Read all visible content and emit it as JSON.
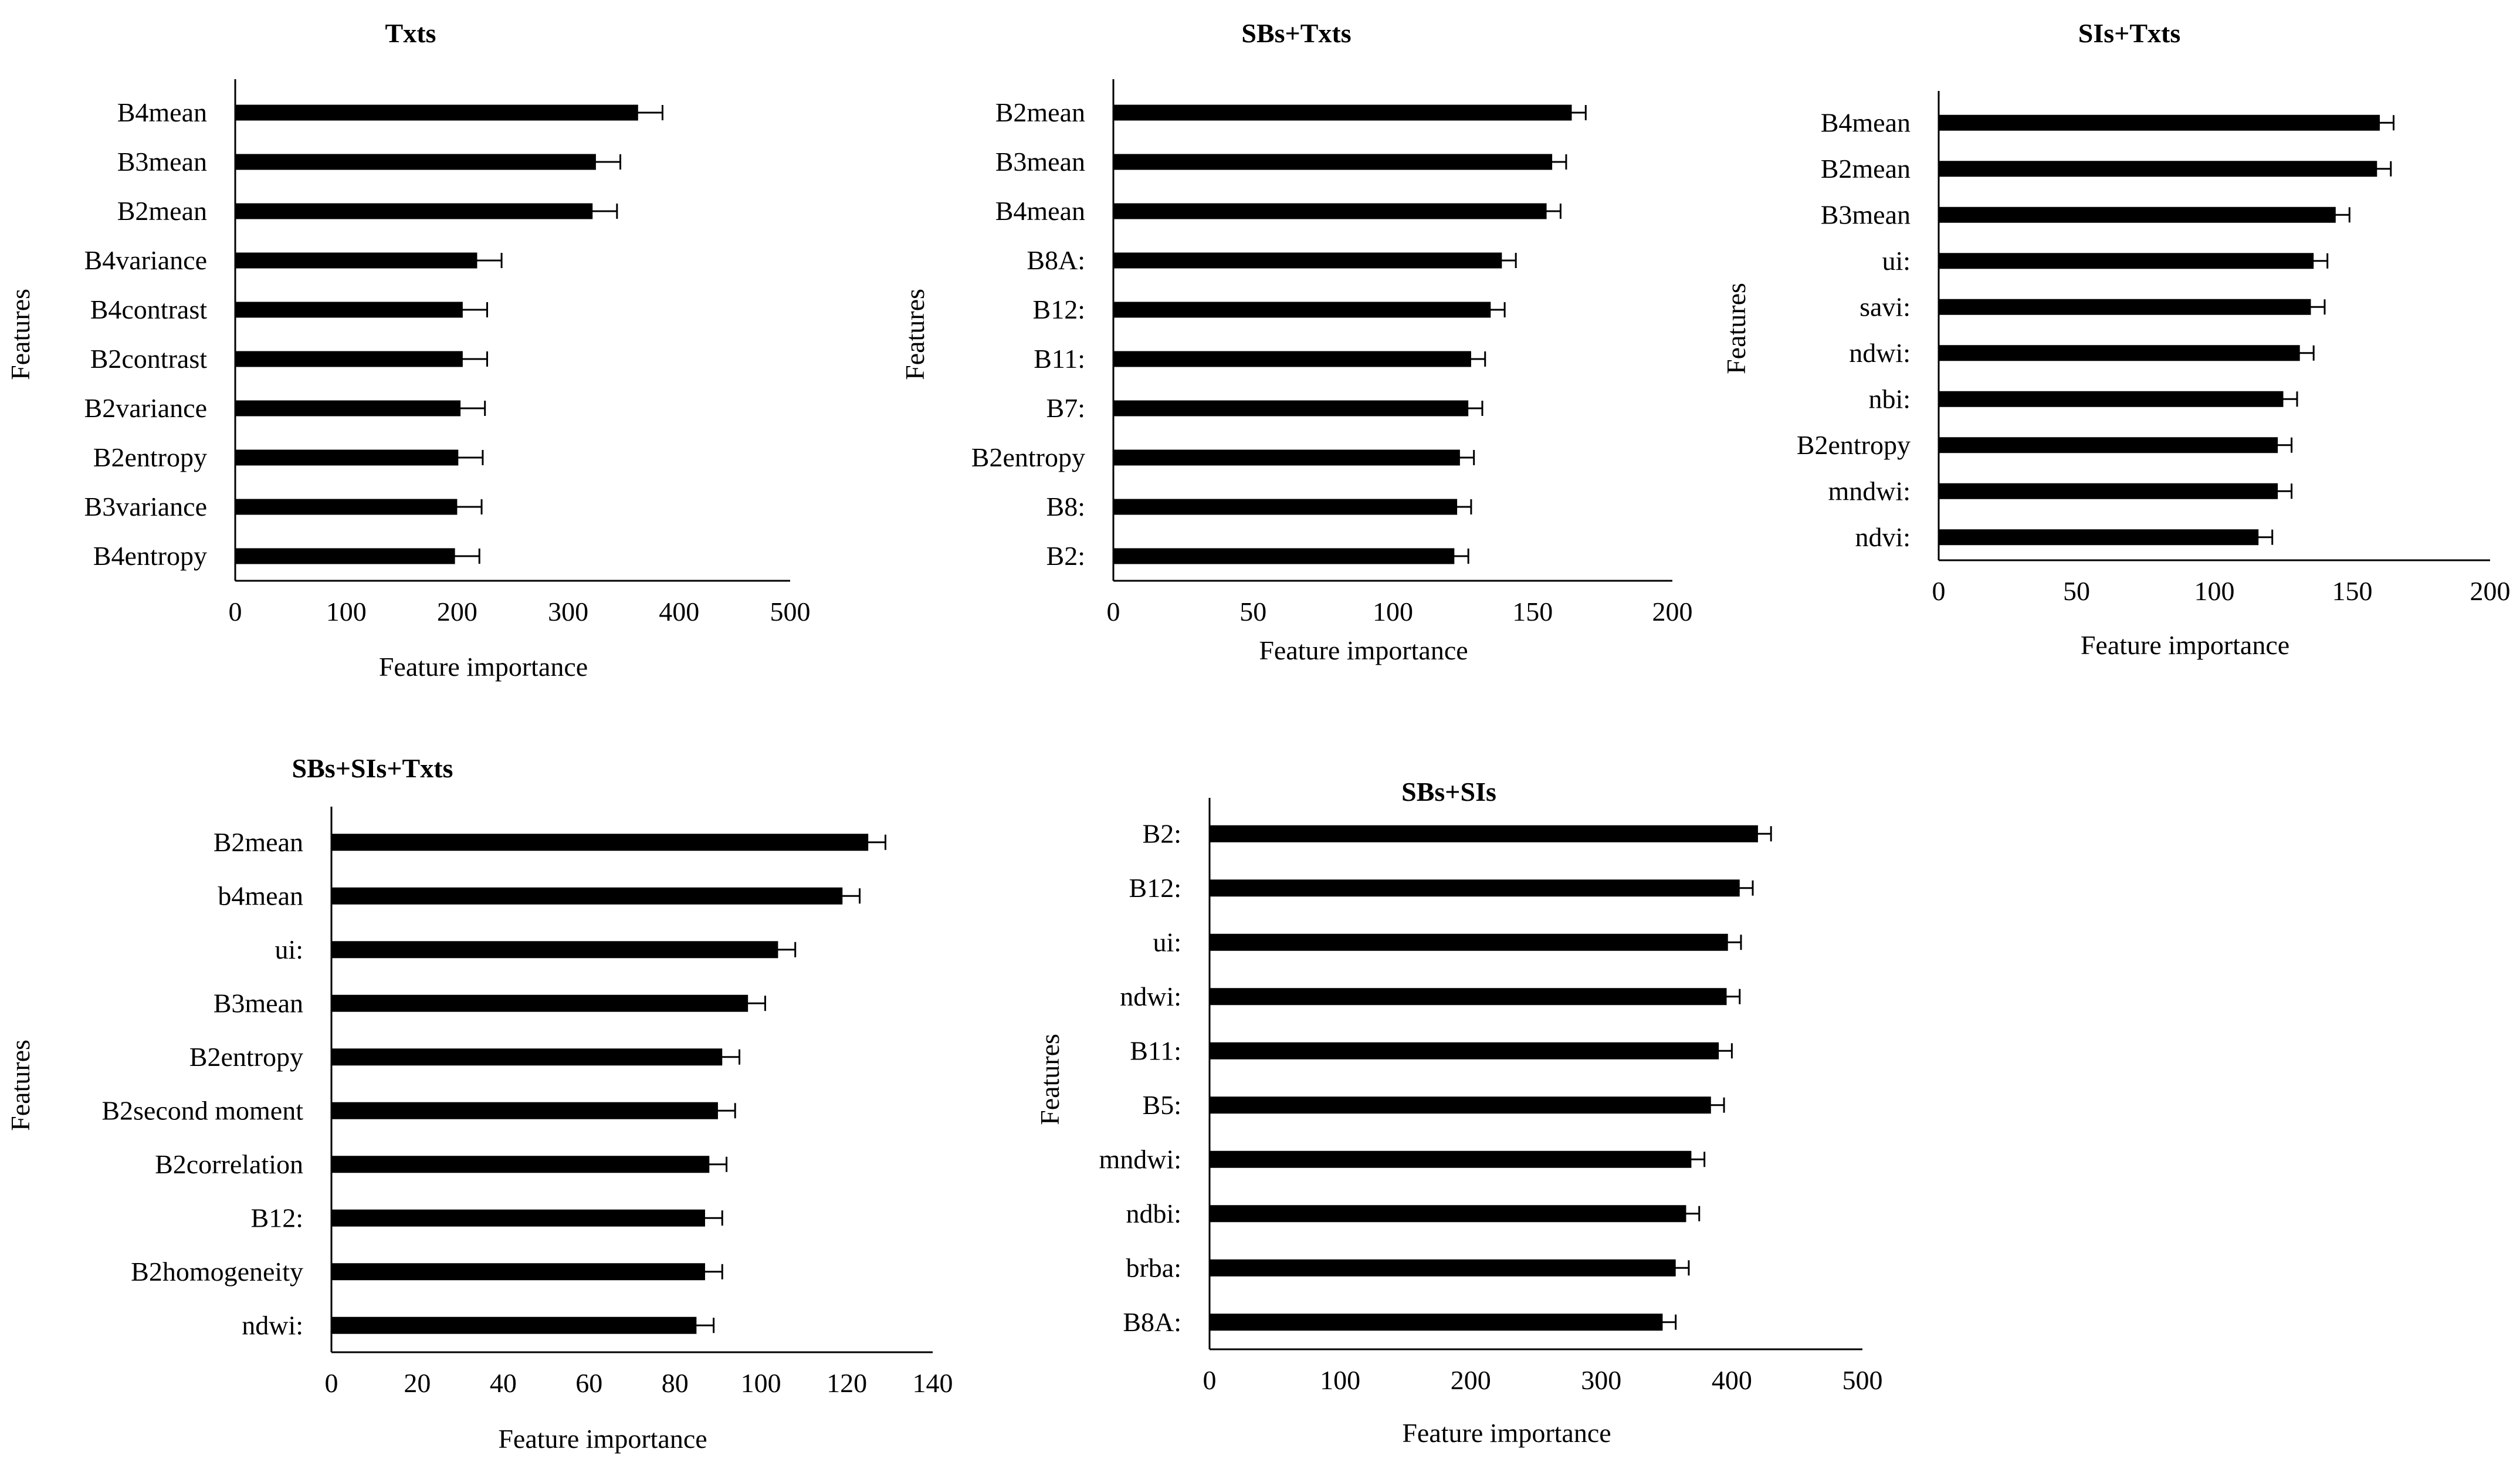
{
  "figure": {
    "background": "#ffffff",
    "bar_color": "#000000",
    "axis_color": "#000000"
  },
  "chart_data": [
    {
      "type": "bar",
      "orientation": "horizontal",
      "title": "Txts",
      "xlabel": "Feature importance",
      "ylabel": "Features",
      "xlim": [
        0,
        500
      ],
      "xticks": [
        0,
        100,
        200,
        300,
        400,
        500
      ],
      "categories": [
        "B4mean",
        "B3mean",
        "B2mean",
        "B4variance",
        "B4contrast",
        "B2contrast",
        "B2variance",
        "B2entropy",
        "B3variance",
        "B4entropy"
      ],
      "values": [
        363,
        325,
        322,
        218,
        205,
        205,
        203,
        201,
        200,
        198
      ],
      "errors": [
        22,
        22,
        22,
        22,
        22,
        22,
        22,
        22,
        22,
        22
      ]
    },
    {
      "type": "bar",
      "orientation": "horizontal",
      "title": "SBs+Txts",
      "xlabel": "Feature importance",
      "ylabel": "Features",
      "xlim": [
        0,
        200
      ],
      "xticks": [
        0,
        50,
        100,
        150,
        200
      ],
      "categories": [
        "B2mean",
        "B3mean",
        "B4mean",
        "B8A:",
        "B12:",
        "B11:",
        "B7:",
        "B2entropy",
        "B8:",
        "B2:"
      ],
      "values": [
        164,
        157,
        155,
        139,
        135,
        128,
        127,
        124,
        123,
        122
      ],
      "errors": [
        5,
        5,
        5,
        5,
        5,
        5,
        5,
        5,
        5,
        5
      ]
    },
    {
      "type": "bar",
      "orientation": "horizontal",
      "title": "SIs+Txts",
      "xlabel": "Feature importance",
      "ylabel": "Features",
      "xlim": [
        0,
        200
      ],
      "xticks": [
        0,
        50,
        100,
        150,
        200
      ],
      "categories": [
        "B4mean",
        "B2mean",
        "B3mean",
        "ui:",
        "savi:",
        "ndwi:",
        "nbi:",
        "B2entropy",
        "mndwi:",
        "ndvi:"
      ],
      "values": [
        160,
        159,
        144,
        136,
        135,
        131,
        125,
        123,
        123,
        116
      ],
      "errors": [
        5,
        5,
        5,
        5,
        5,
        5,
        5,
        5,
        5,
        5
      ]
    },
    {
      "type": "bar",
      "orientation": "horizontal",
      "title": "SBs+SIs+Txts",
      "xlabel": "Feature importance",
      "ylabel": "Features",
      "xlim": [
        0,
        140
      ],
      "xticks": [
        0,
        20,
        40,
        60,
        80,
        100,
        120,
        140
      ],
      "categories": [
        "B2mean",
        "b4mean",
        "ui:",
        "B3mean",
        "B2entropy",
        "B2second moment",
        "B2correlation",
        "B12:",
        "B2homogeneity",
        "ndwi:"
      ],
      "values": [
        125,
        119,
        104,
        97,
        91,
        90,
        88,
        87,
        87,
        85
      ],
      "errors": [
        4,
        4,
        4,
        4,
        4,
        4,
        4,
        4,
        4,
        4
      ]
    },
    {
      "type": "bar",
      "orientation": "horizontal",
      "title": "SBs+SIs",
      "xlabel": "Feature importance",
      "ylabel": "Features",
      "xlim": [
        0,
        500
      ],
      "xticks": [
        0,
        100,
        200,
        300,
        400,
        500
      ],
      "categories": [
        "B2:",
        "B12:",
        "ui:",
        "ndwi:",
        "B11:",
        "B5:",
        "mndwi:",
        "ndbi:",
        "brba:",
        "B8A:"
      ],
      "values": [
        420,
        406,
        397,
        396,
        390,
        384,
        369,
        365,
        357,
        347
      ],
      "errors": [
        10,
        10,
        10,
        10,
        10,
        10,
        10,
        10,
        10,
        10
      ]
    }
  ]
}
